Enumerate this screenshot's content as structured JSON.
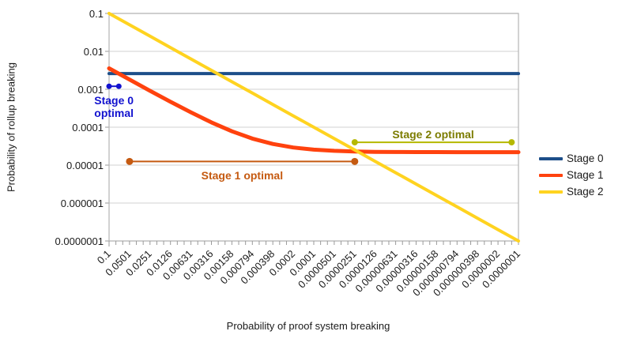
{
  "chart_data": {
    "type": "line",
    "title": "",
    "xlabel": "Probability of proof system breaking",
    "ylabel": "Probability of rollup breaking",
    "x_scale": "log-descending",
    "y_scale": "log",
    "xlim": [
      0.1,
      1e-07
    ],
    "ylim": [
      0.1,
      1e-07
    ],
    "grid": "horizontal",
    "legend_position": "right",
    "y_tick_labels": [
      "0.1",
      "0.01",
      "0.001",
      "0.0001",
      "0.00001",
      "0.000001",
      "0.0000001"
    ],
    "x_tick_labels": [
      "0.1",
      "0.0501",
      "0.0251",
      "0.0126",
      "0.00631",
      "0.00316",
      "0.00158",
      "0.000794",
      "0.000398",
      "0.0002",
      "0.0001",
      "0.0000501",
      "0.0000251",
      "0.0000126",
      "0.00000631",
      "0.00000316",
      "0.00000158",
      "0.000000794",
      "0.000000398",
      "0.0000002",
      "0.0000001"
    ],
    "x": [
      0.1,
      0.0501,
      0.0251,
      0.0126,
      0.00631,
      0.00316,
      0.00158,
      0.000794,
      0.000398,
      0.0002,
      0.0001,
      5.01e-05,
      2.51e-05,
      1.26e-05,
      6.31e-06,
      3.16e-06,
      1.58e-06,
      7.94e-07,
      3.98e-07,
      2e-07,
      1e-07
    ],
    "series": [
      {
        "name": "Stage 0",
        "color": "#1d4e89",
        "values": [
          0.0026,
          0.0026,
          0.0026,
          0.0026,
          0.0026,
          0.0026,
          0.0026,
          0.0026,
          0.0026,
          0.0026,
          0.0026,
          0.0026,
          0.0026,
          0.0026,
          0.0026,
          0.0026,
          0.0026,
          0.0026,
          0.0026,
          0.0026,
          0.0026
        ]
      },
      {
        "name": "Stage 1",
        "color": "#ff420e",
        "values": [
          0.00357,
          0.0018,
          0.000913,
          0.000469,
          0.000246,
          0.000134,
          7.81e-05,
          5.02e-05,
          3.61e-05,
          2.91e-05,
          2.56e-05,
          2.38e-05,
          2.29e-05,
          2.24e-05,
          2.22e-05,
          2.21e-05,
          2.21e-05,
          2.2e-05,
          2.2e-05,
          2.2e-05,
          2.2e-05
        ]
      },
      {
        "name": "Stage 2",
        "color": "#ffd320",
        "values": [
          0.1,
          0.0501,
          0.0251,
          0.0126,
          0.00631,
          0.00316,
          0.00158,
          0.000794,
          0.000398,
          0.0002,
          0.0001,
          5.01e-05,
          2.51e-05,
          1.26e-05,
          6.31e-06,
          3.16e-06,
          1.58e-06,
          7.94e-07,
          3.98e-07,
          2e-07,
          1e-07
        ]
      }
    ],
    "annotations": [
      {
        "label": "Stage 0 optimal",
        "color": "#1212cf",
        "label_color": "#1212cf",
        "y": 0.0012,
        "x_start": 0.1,
        "x_end": 0.072,
        "label_pos": "below",
        "dot_r": 3.5
      },
      {
        "label": "Stage 1 optimal",
        "color": "#c55a11",
        "label_color": "#c55a11",
        "y": 1.25e-05,
        "x_start": 0.0501,
        "x_end": 2.51e-05,
        "label_pos": "below",
        "dot_r": 4.5
      },
      {
        "label": "Stage 2 optimal",
        "color": "#b5b800",
        "label_color": "#7c7c00",
        "y": 4e-05,
        "x_start": 2.51e-05,
        "x_end": 1.26e-07,
        "label_pos": "above",
        "dot_r": 4
      }
    ]
  }
}
